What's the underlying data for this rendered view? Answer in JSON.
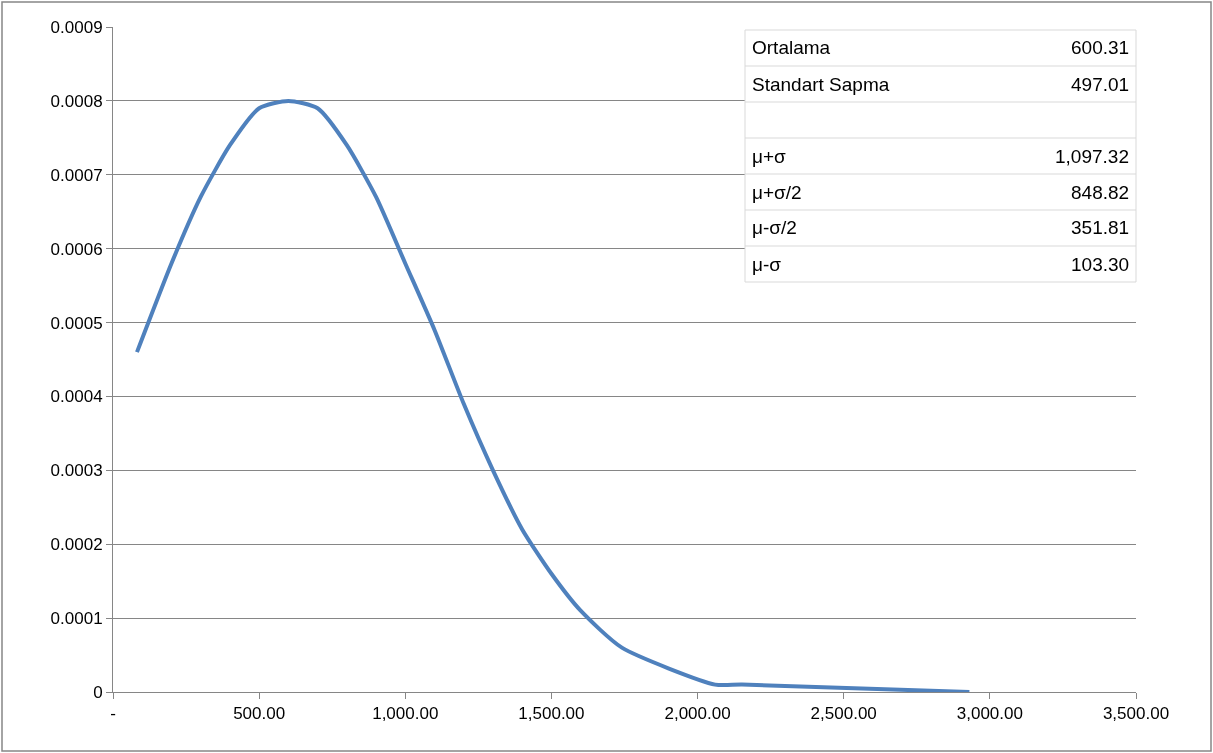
{
  "chart_data": {
    "type": "line",
    "x": [
      82,
      200,
      300,
      400,
      500,
      600,
      700,
      800,
      900,
      1000,
      1100,
      1200,
      1300,
      1400,
      1500,
      1600,
      1741,
      2060,
      2152,
      2930
    ],
    "series": [
      {
        "color": "#4f81bd",
        "values": [
          0.00046,
          0.00058,
          0.00067,
          0.00074,
          0.00079,
          0.0008,
          0.00079,
          0.00074,
          0.00067,
          0.00058,
          0.00049,
          0.00039,
          0.0003,
          0.00022,
          0.00016,
          0.00011,
          6e-05,
          1e-05,
          1e-05,
          0.0
        ]
      }
    ],
    "xlim": [
      0,
      3500
    ],
    "xticks": [
      {
        "value": 0,
        "label": "-"
      },
      {
        "value": 500,
        "label": "500.00"
      },
      {
        "value": 1000,
        "label": "1,000.00"
      },
      {
        "value": 1500,
        "label": "1,500.00"
      },
      {
        "value": 2000,
        "label": "2,000.00"
      },
      {
        "value": 2500,
        "label": "2,500.00"
      },
      {
        "value": 3000,
        "label": "3,000.00"
      },
      {
        "value": 3500,
        "label": "3,500.00"
      }
    ],
    "ylim": [
      0,
      0.0009
    ],
    "yticks": [
      {
        "value": 0,
        "label": "0"
      },
      {
        "value": 0.0001,
        "label": "0.0001"
      },
      {
        "value": 0.0002,
        "label": "0.0002"
      },
      {
        "value": 0.0003,
        "label": "0.0003"
      },
      {
        "value": 0.0004,
        "label": "0.0004"
      },
      {
        "value": 0.0005,
        "label": "0.0005"
      },
      {
        "value": 0.0006,
        "label": "0.0006"
      },
      {
        "value": 0.0007,
        "label": "0.0007"
      },
      {
        "value": 0.0008,
        "label": "0.0008"
      },
      {
        "value": 0.0009,
        "label": "0.0009"
      }
    ],
    "grid": "y",
    "marker": "none",
    "line_style": "solid",
    "annotations": [
      "Ortalama",
      "600.31",
      "Standart Sapma",
      "497.01",
      "μ+σ",
      "1,097.32",
      "μ+σ/2",
      "848.82",
      "μ-σ/2",
      "351.81",
      "μ-σ",
      "103.30"
    ]
  }
}
